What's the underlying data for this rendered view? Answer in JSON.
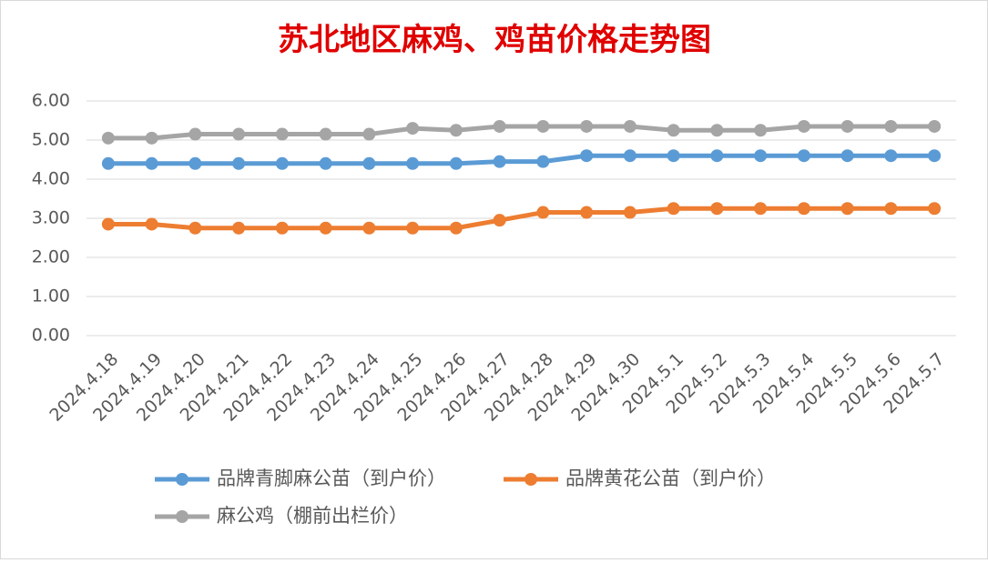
{
  "chart_data": {
    "type": "line",
    "title": "苏北地区麻鸡、鸡苗价格走势图",
    "categories": [
      "2024.4.18",
      "2024.4.19",
      "2024.4.20",
      "2024.4.21",
      "2024.4.22",
      "2024.4.23",
      "2024.4.24",
      "2024.4.25",
      "2024.4.26",
      "2024.4.27",
      "2024.4.28",
      "2024.4.29",
      "2024.4.30",
      "2024.5.1",
      "2024.5.2",
      "2024.5.3",
      "2024.5.4",
      "2024.5.5",
      "2024.5.6",
      "2024.5.7"
    ],
    "series": [
      {
        "name": "品牌青脚麻公苗（到户价）",
        "color": "#5b9bd5",
        "values": [
          4.4,
          4.4,
          4.4,
          4.4,
          4.4,
          4.4,
          4.4,
          4.4,
          4.4,
          4.45,
          4.45,
          4.6,
          4.6,
          4.6,
          4.6,
          4.6,
          4.6,
          4.6,
          4.6,
          4.6
        ]
      },
      {
        "name": "品牌黄花公苗（到户价）",
        "color": "#ed7d31",
        "values": [
          2.85,
          2.85,
          2.75,
          2.75,
          2.75,
          2.75,
          2.75,
          2.75,
          2.75,
          2.95,
          3.15,
          3.15,
          3.15,
          3.25,
          3.25,
          3.25,
          3.25,
          3.25,
          3.25,
          3.25
        ]
      },
      {
        "name": "麻公鸡（棚前出栏价）",
        "color": "#a5a5a5",
        "values": [
          5.05,
          5.05,
          5.15,
          5.15,
          5.15,
          5.15,
          5.15,
          5.3,
          5.25,
          5.35,
          5.35,
          5.35,
          5.35,
          5.25,
          5.25,
          5.25,
          5.35,
          5.35,
          5.35,
          5.35
        ]
      }
    ],
    "ylim": [
      0,
      6
    ],
    "yticks": [
      {
        "value": 0,
        "label": "0.00"
      },
      {
        "value": 1,
        "label": "1.00"
      },
      {
        "value": 2,
        "label": "2.00"
      },
      {
        "value": 3,
        "label": "3.00"
      },
      {
        "value": 4,
        "label": "4.00"
      },
      {
        "value": 5,
        "label": "5.00"
      },
      {
        "value": 6,
        "label": "6.00"
      }
    ],
    "grid": true
  }
}
